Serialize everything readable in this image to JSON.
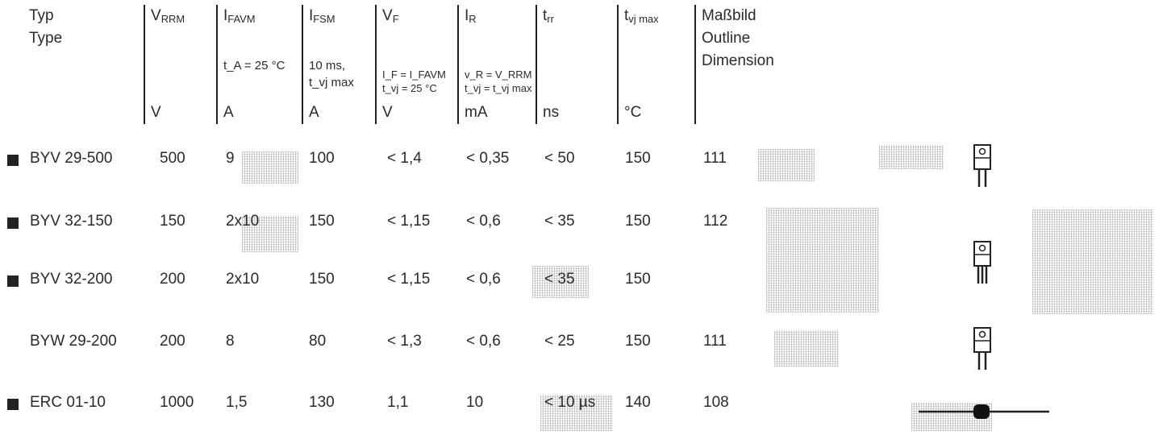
{
  "header": {
    "type": {
      "de": "Typ",
      "en": "Type"
    },
    "vrrm": {
      "sym": "V",
      "sub": "RRM",
      "unit": "V"
    },
    "ifavm": {
      "sym": "I",
      "sub": "FAVM",
      "cond": "t_A = 25 °C",
      "unit": "A"
    },
    "ifsm": {
      "sym": "I",
      "sub": "FSM",
      "cond1": "10 ms,",
      "cond2": "t_vj max",
      "unit": "A"
    },
    "vf": {
      "sym": "V",
      "sub": "F",
      "cond1": "I_F = I_FAVM",
      "cond2": "t_vj = 25 °C",
      "unit": "V"
    },
    "ir": {
      "sym": "I",
      "sub": "R",
      "cond1": "v_R = V_RRM",
      "cond2": "t_vj = t_vj max",
      "unit": "mA"
    },
    "trr": {
      "sym": "t",
      "sub": "rr",
      "unit": "ns"
    },
    "tvj": {
      "sym": "t",
      "sub": "vj max",
      "unit": "°C"
    },
    "outline": {
      "de": "Maßbild",
      "en": "Outline",
      "en2": "Dimension"
    }
  },
  "rows": [
    {
      "bullet": true,
      "type": "BYV 29-500",
      "vrrm": "500",
      "ifavm": "9",
      "ifsm": "100",
      "vf": "< 1,4",
      "ir": "< 0,35",
      "trr": "< 50",
      "tvj": "150",
      "outline": "111",
      "pkg": "to220-2"
    },
    {
      "bullet": true,
      "type": "BYV 32-150",
      "vrrm": "150",
      "ifavm": "2x10",
      "ifsm": "150",
      "vf": "< 1,15",
      "ir": "< 0,6",
      "trr": "< 35",
      "tvj": "150",
      "outline": "112",
      "pkg": "to220-3"
    },
    {
      "bullet": true,
      "type": "BYV 32-200",
      "vrrm": "200",
      "ifavm": "2x10",
      "ifsm": "150",
      "vf": "< 1,15",
      "ir": "< 0,6",
      "trr": "< 35",
      "tvj": "150",
      "outline": "",
      "pkg": ""
    },
    {
      "bullet": false,
      "type": "BYW 29-200",
      "vrrm": "200",
      "ifavm": "8",
      "ifsm": "80",
      "vf": "< 1,3",
      "ir": "< 0,6",
      "trr": "< 25",
      "tvj": "150",
      "outline": "111",
      "pkg": "to220-2"
    },
    {
      "bullet": true,
      "type": "ERC 01-10",
      "vrrm": "1000",
      "ifavm": "1,5",
      "ifsm": "130",
      "vf": "1,1",
      "ir": "10",
      "trr": "< 10 µs",
      "tvj": "140",
      "outline": "108",
      "pkg": "axial"
    }
  ]
}
